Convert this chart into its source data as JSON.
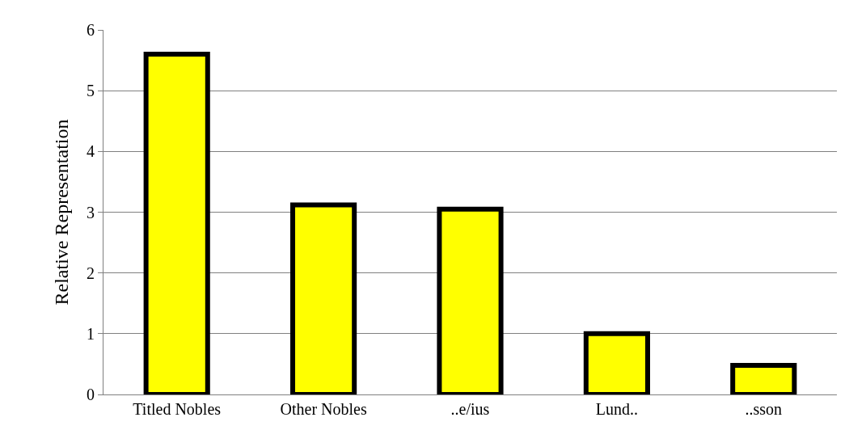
{
  "chart_data": {
    "type": "bar",
    "ylabel": "Relative Representation",
    "categories": [
      "Titled Nobles",
      "Other Nobles",
      "..e/ius",
      "Lund..",
      "..sson"
    ],
    "values": [
      5.6,
      3.12,
      3.05,
      1.0,
      0.48
    ],
    "color": "#ffff00",
    "ylim": [
      0,
      6
    ],
    "yticks": [
      0,
      1,
      2,
      3,
      4,
      5,
      6
    ],
    "grid": "y"
  }
}
